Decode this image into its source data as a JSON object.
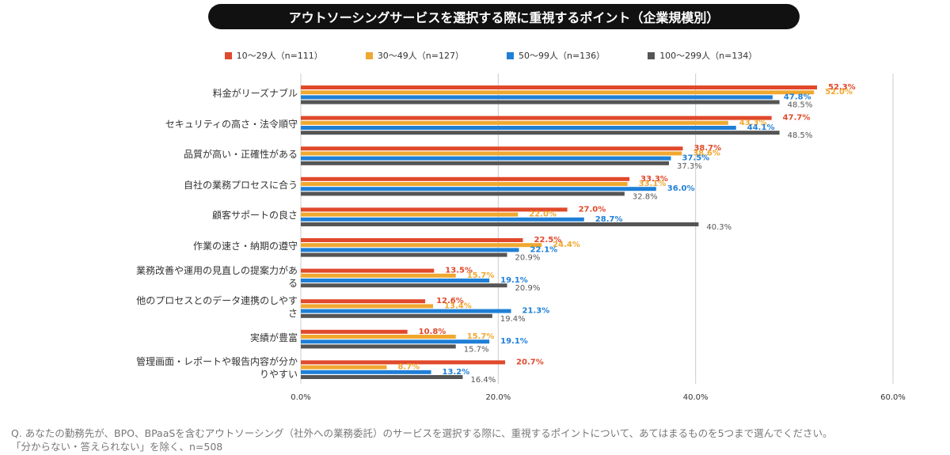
{
  "chart_data": {
    "type": "bar",
    "orientation": "horizontal",
    "title": "アウトソーシングサービスを選択する際に重視するポイント（企業規模別）",
    "categories": [
      "料金がリーズナブル",
      "セキュリティの高さ・法令順守",
      "品質が高い・正確性がある",
      "自社の業務プロセスに合う",
      "顧客サポートの良さ",
      "作業の速さ・納期の遵守",
      "業務改善や運用の見直しの提案力がある",
      "他のプロセスとのデータ連携のしやすさ",
      "実績が豊富",
      "管理画面・レポートや報告内容が分かりやすい"
    ],
    "series": [
      {
        "name": "10〜29人（n=111）",
        "color": "#e0492b",
        "values": [
          52.3,
          47.7,
          38.7,
          33.3,
          27.0,
          22.5,
          13.5,
          12.6,
          10.8,
          20.7
        ],
        "value_labels": [
          "52.3%",
          "47.7%",
          "38.7%",
          "33.3%",
          "27.0%",
          "22.5%",
          "13.5%",
          "12.6%",
          "10.8%",
          "20.7%"
        ]
      },
      {
        "name": "30〜49人（n=127）",
        "color": "#f0a830",
        "values": [
          52.0,
          43.3,
          38.6,
          33.1,
          22.0,
          24.4,
          15.7,
          13.4,
          15.7,
          8.7
        ],
        "value_labels": [
          "52.0%",
          "43.3%",
          "38.6%",
          "33.1%",
          "22.0%",
          "24.4%",
          "15.7%",
          "13.4%",
          "15.7%",
          "8.7%"
        ]
      },
      {
        "name": "50〜99人（n=136）",
        "color": "#1f7fd6",
        "values": [
          47.8,
          44.1,
          37.5,
          36.0,
          28.7,
          22.1,
          19.1,
          21.3,
          19.1,
          13.2
        ],
        "value_labels": [
          "47.8%",
          "44.1%",
          "37.5%",
          "36.0%",
          "28.7%",
          "22.1%",
          "19.1%",
          "21.3%",
          "19.1%",
          "13.2%"
        ]
      },
      {
        "name": "100〜299人（n=134）",
        "color": "#555555",
        "values": [
          48.5,
          48.5,
          37.3,
          32.8,
          40.3,
          20.9,
          20.9,
          19.4,
          15.7,
          16.4
        ],
        "value_labels": [
          "48.5%",
          "48.5%",
          "37.3%",
          "32.8%",
          "40.3%",
          "20.9%",
          "20.9%",
          "19.4%",
          "15.7%",
          "16.4%"
        ]
      }
    ],
    "xlim": [
      0,
      60
    ],
    "xticks": [
      {
        "value": 0,
        "label": "0.0%"
      },
      {
        "value": 20,
        "label": "20.0%"
      },
      {
        "value": 40,
        "label": "40.0%"
      },
      {
        "value": 60,
        "label": "60.0%"
      }
    ],
    "grid": true,
    "footnote": [
      "Q. あなたの勤務先が、BPO、BPaaSを含むアウトソーシング（社外への業務委託）のサービスを選択する際に、重視するポイントについて、あてはまるものを5つまで選んでください。",
      "「分からない・答えられない」を除く、n=508"
    ]
  }
}
